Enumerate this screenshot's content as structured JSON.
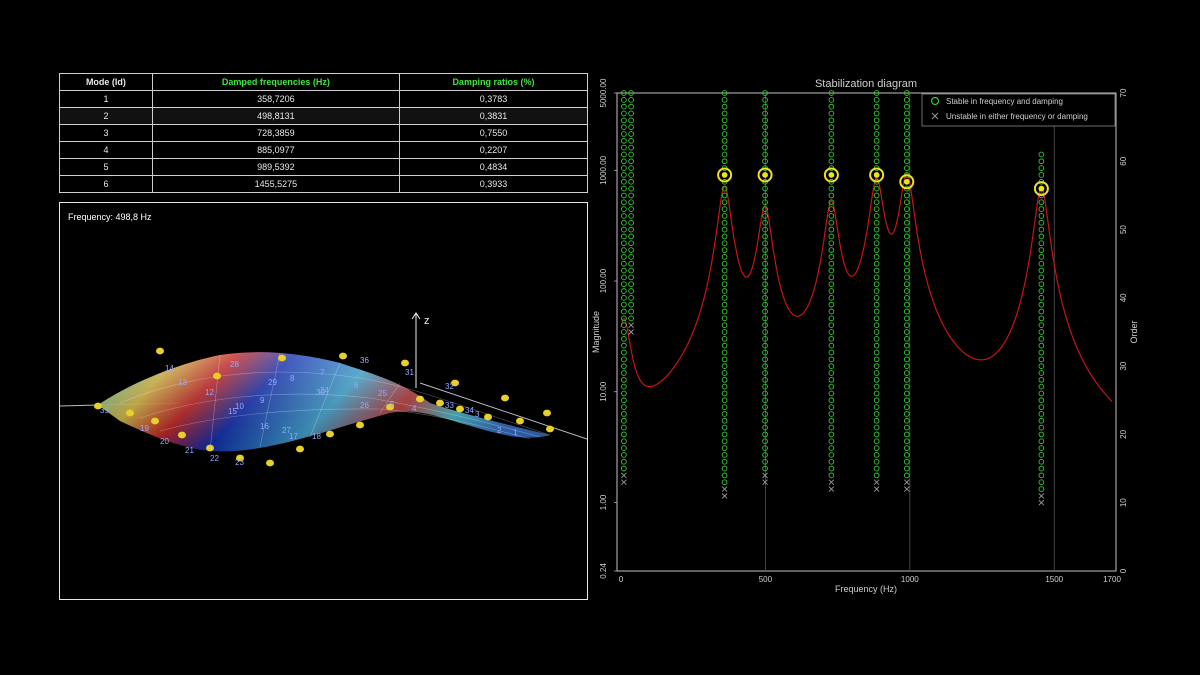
{
  "table": {
    "headers": [
      "Mode (Id)",
      "Damped frequencies (Hz)",
      "Damping ratios (%)"
    ],
    "rows": [
      {
        "id": "1",
        "freq": "358,7206",
        "damp": "0,3783"
      },
      {
        "id": "2",
        "freq": "498,8131",
        "damp": "0,3831"
      },
      {
        "id": "3",
        "freq": "728,3859",
        "damp": "0,7550"
      },
      {
        "id": "4",
        "freq": "885,0977",
        "damp": "0,2207"
      },
      {
        "id": "5",
        "freq": "989,5392",
        "damp": "0,4834"
      },
      {
        "id": "6",
        "freq": "1455,5275",
        "damp": "0,3933"
      }
    ]
  },
  "viewer": {
    "frequency_label": "Frequency: 498,8 Hz",
    "axis_label": "z",
    "node_labels": [
      "1",
      "2",
      "3",
      "4",
      "5",
      "6",
      "7",
      "8",
      "9",
      "10",
      "12",
      "13",
      "14",
      "15",
      "16",
      "17",
      "18",
      "19",
      "20",
      "21",
      "22",
      "23",
      "24",
      "25",
      "26",
      "27",
      "28",
      "29",
      "30",
      "31",
      "32",
      "33",
      "34",
      "35",
      "36"
    ]
  },
  "chart_data": {
    "type": "line",
    "title": "Stabilization diagram",
    "xlabel": "Frequency (Hz)",
    "ylabel": "Magnitude",
    "y2label": "Order",
    "xlim": [
      0,
      1700
    ],
    "x_ticks": [
      "0",
      "500",
      "1000",
      "1500",
      "1700"
    ],
    "ylim": [
      0.24,
      5000
    ],
    "y_scale": "log",
    "y_ticks": [
      "0.24",
      "1.00",
      "10.00",
      "100.00",
      "1000.00",
      "5000.00"
    ],
    "y2lim": [
      0,
      70
    ],
    "y2_ticks": [
      "0",
      "10",
      "20",
      "30",
      "40",
      "50",
      "60",
      "70"
    ],
    "legend": {
      "placement": "top-right",
      "entries": [
        "Stable in frequency and damping",
        "Unstable in either frequency or damping"
      ]
    },
    "colors": {
      "stable": "#33cc33",
      "unstable": "#999999",
      "frf": "#c81414",
      "selected": "#f0e020"
    },
    "frf_peaks": [
      {
        "x": 10,
        "y": 40
      },
      {
        "x": 358.7,
        "y": 700
      },
      {
        "x": 498.8,
        "y": 450
      },
      {
        "x": 728.4,
        "y": 500
      },
      {
        "x": 885.1,
        "y": 800
      },
      {
        "x": 989.5,
        "y": 900
      },
      {
        "x": 1455.5,
        "y": 700
      }
    ],
    "stable_columns": [
      {
        "x": 10,
        "order_min": 15,
        "order_max": 70
      },
      {
        "x": 35,
        "order_min": 37,
        "order_max": 70
      },
      {
        "x": 358.7,
        "order_min": 13,
        "order_max": 70
      },
      {
        "x": 498.8,
        "order_min": 15,
        "order_max": 70
      },
      {
        "x": 728.4,
        "order_min": 14,
        "order_max": 70
      },
      {
        "x": 885.1,
        "order_min": 14,
        "order_max": 70
      },
      {
        "x": 989.5,
        "order_min": 14,
        "order_max": 70
      },
      {
        "x": 1455.5,
        "order_min": 12,
        "order_max": 61
      }
    ],
    "selected_modes": [
      {
        "x": 358.7,
        "order": 58
      },
      {
        "x": 498.8,
        "order": 58
      },
      {
        "x": 728.4,
        "order": 58
      },
      {
        "x": 885.1,
        "order": 58
      },
      {
        "x": 989.5,
        "order": 57
      },
      {
        "x": 1455.5,
        "order": 56
      }
    ],
    "reference_lines_x": [
      500,
      1000,
      1500
    ]
  }
}
